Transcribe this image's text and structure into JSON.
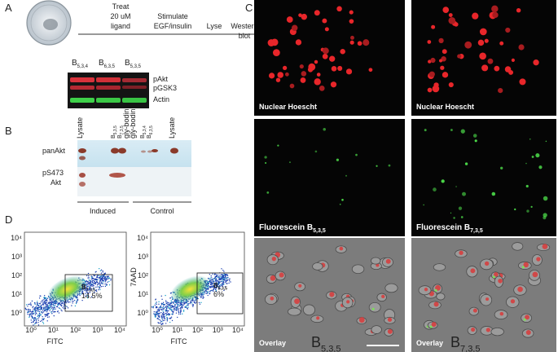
{
  "panel_a": {
    "label": "A",
    "steps": {
      "treat": [
        "Treat",
        "20 uM",
        "ligand"
      ],
      "stimulate": [
        "Stimulate",
        "EGF/insulin"
      ],
      "lyse": "Lyse",
      "western": [
        "Western",
        "blot"
      ]
    },
    "lanes": [
      {
        "base": "B",
        "sub": "5,3,4"
      },
      {
        "base": "B",
        "sub": "6,3,5"
      },
      {
        "base": "B",
        "sub": "5,3,5"
      }
    ],
    "bands": [
      "pAkt",
      "pGSK3",
      "Actin"
    ]
  },
  "panel_b": {
    "label": "B",
    "rows": [
      [
        "panAkt"
      ],
      [
        "pS473",
        "Akt"
      ]
    ],
    "lanes": [
      "Lysate",
      {
        "base": "B",
        "sub": "5,3,5"
      },
      {
        "base": "B",
        "sub": "7,3,5"
      },
      "gly-bodin",
      "gly-bodin",
      {
        "base": "B",
        "sub": "5,3,4"
      },
      {
        "base": "B",
        "sub": "6,3,5"
      },
      "Lysate"
    ],
    "groups": [
      "Induced",
      "Control"
    ]
  },
  "panel_c": {
    "label": "C",
    "images": [
      {
        "caption": {
          "text": "Nuclear Hoescht"
        }
      },
      {
        "caption": {
          "text": "Nuclear Hoescht"
        }
      },
      {
        "caption": {
          "text": "Fluorescein B",
          "sub": "5,3,5"
        }
      },
      {
        "caption": {
          "text": "Fluorescein B",
          "sub": "7,3,5"
        }
      },
      {
        "caption": {
          "text": "Overlay"
        },
        "compound": {
          "base": "B",
          "sub": "5,3,5"
        }
      },
      {
        "caption": {
          "text": "Overlay"
        },
        "compound": {
          "base": "B",
          "sub": "7,3,5"
        }
      }
    ]
  },
  "panel_d": {
    "label": "D",
    "plots": [
      {
        "x_label": "FITC",
        "yticks": [
          "10⁴",
          "10³",
          "10²",
          "10¹",
          "10⁰"
        ],
        "xticks": [
          "10⁰",
          "10¹",
          "10²",
          "10³",
          "10⁴"
        ],
        "gate": {
          "base": "B",
          "sub": "7,3,5"
        },
        "percent": "14.5%"
      },
      {
        "x_label": "FITC",
        "y_label": "7AAD",
        "yticks": [
          "10⁴",
          "10³",
          "10²",
          "10¹",
          "10⁰"
        ],
        "xticks": [
          "10⁰",
          "10¹",
          "10²",
          "10³",
          "10⁴"
        ],
        "gate": {
          "base": "B",
          "sub": "5,3,5"
        },
        "percent": "6%"
      }
    ]
  }
}
